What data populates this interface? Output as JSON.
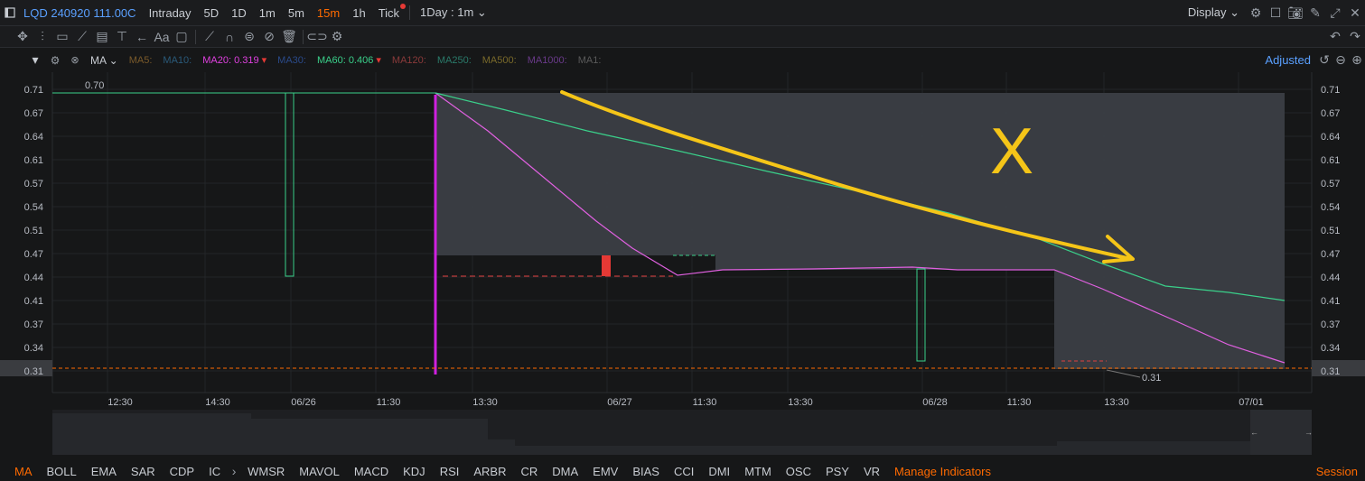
{
  "topbar": {
    "symbol": "LQD 240920 111.00C",
    "tabs": [
      {
        "label": "Intraday",
        "active": false
      },
      {
        "label": "5D",
        "active": false
      },
      {
        "label": "1D",
        "active": false
      },
      {
        "label": "1m",
        "active": false
      },
      {
        "label": "5m",
        "active": false
      },
      {
        "label": "15m",
        "active": true
      },
      {
        "label": "1h",
        "active": false
      },
      {
        "label": "Tick",
        "active": false
      }
    ],
    "period_select": "1Day : 1m",
    "display_label": "Display"
  },
  "ma_bar": {
    "label": "MA",
    "items": [
      {
        "text": "MA5:",
        "color": "#7a5a2a"
      },
      {
        "text": "MA10:",
        "color": "#2a5a7a"
      },
      {
        "text": "MA20: 0.319",
        "color": "#e040e0",
        "arrow": true
      },
      {
        "text": "MA30:",
        "color": "#2a4a8a"
      },
      {
        "text": "MA60: 0.406",
        "color": "#3ad08a",
        "arrow": true
      },
      {
        "text": "MA120:",
        "color": "#8a3a3a"
      },
      {
        "text": "MA250:",
        "color": "#2a7a6a"
      },
      {
        "text": "MA500:",
        "color": "#7a6a2a"
      },
      {
        "text": "MA1000:",
        "color": "#6a3a8a"
      },
      {
        "text": "MA1:",
        "color": "#5a5a5a"
      }
    ],
    "adjusted_label": "Adjusted"
  },
  "chart_data": {
    "type": "candlestick",
    "y_ticks": [
      "0.71",
      "0.67",
      "0.64",
      "0.61",
      "0.57",
      "0.54",
      "0.51",
      "0.47",
      "0.44",
      "0.41",
      "0.37",
      "0.34",
      "0.31"
    ],
    "x_ticks": [
      "12:30",
      "14:30",
      "06/26",
      "11:30",
      "13:30",
      "06/27",
      "11:30",
      "13:30",
      "06/28",
      "11:30",
      "13:30",
      "07/01"
    ],
    "ylim": [
      0.31,
      0.71
    ],
    "high_label": "0.70",
    "low_label": "0.31",
    "current_price_label": "0.31",
    "annotation": "X",
    "series": [
      {
        "name": "MA20",
        "color": "#e060e0"
      },
      {
        "name": "MA60",
        "color": "#3ad08a"
      }
    ]
  },
  "indicators": {
    "items": [
      {
        "label": "MA",
        "active": true
      },
      {
        "label": "BOLL"
      },
      {
        "label": "EMA"
      },
      {
        "label": "SAR"
      },
      {
        "label": "CDP"
      },
      {
        "label": "IC"
      }
    ],
    "items2": [
      {
        "label": "WMSR"
      },
      {
        "label": "MAVOL"
      },
      {
        "label": "MACD"
      },
      {
        "label": "KDJ"
      },
      {
        "label": "RSI"
      },
      {
        "label": "ARBR"
      },
      {
        "label": "CR"
      },
      {
        "label": "DMA"
      },
      {
        "label": "EMV"
      },
      {
        "label": "BIAS"
      },
      {
        "label": "CCI"
      },
      {
        "label": "DMI"
      },
      {
        "label": "MTM"
      },
      {
        "label": "OSC"
      },
      {
        "label": "PSY"
      },
      {
        "label": "VR"
      }
    ],
    "manage_label": "Manage Indicators",
    "session_label": "Session"
  }
}
